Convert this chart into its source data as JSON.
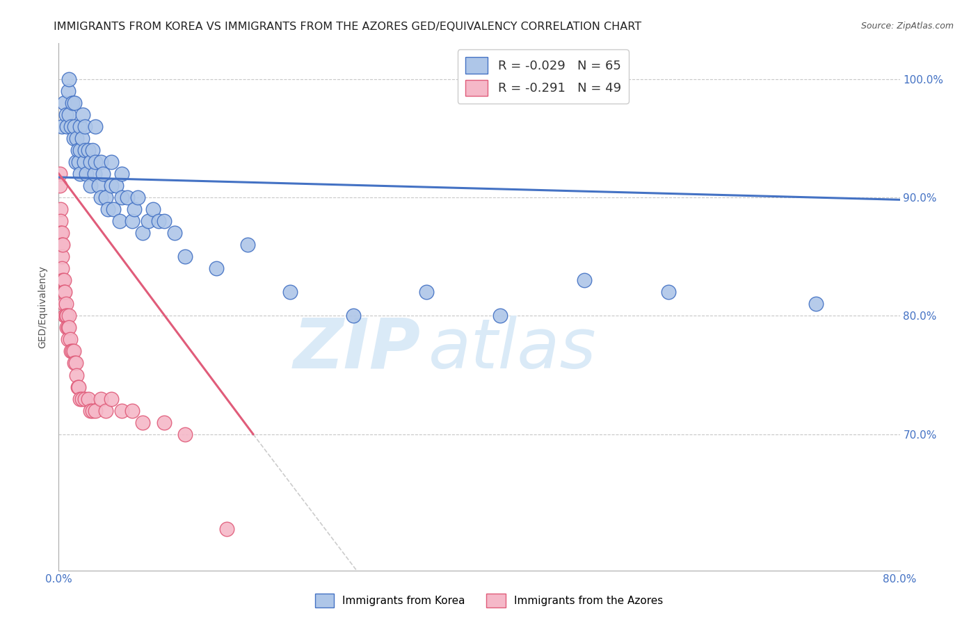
{
  "title": "IMMIGRANTS FROM KOREA VS IMMIGRANTS FROM THE AZORES GED/EQUIVALENCY CORRELATION CHART",
  "source": "Source: ZipAtlas.com",
  "ylabel": "GED/Equivalency",
  "ytick_labels": [
    "100.0%",
    "90.0%",
    "80.0%",
    "70.0%"
  ],
  "ytick_values": [
    1.0,
    0.9,
    0.8,
    0.7
  ],
  "xlim": [
    0.0,
    0.8
  ],
  "ylim": [
    0.585,
    1.03
  ],
  "korea_scatter_x": [
    0.003,
    0.005,
    0.007,
    0.008,
    0.009,
    0.01,
    0.01,
    0.012,
    0.013,
    0.014,
    0.015,
    0.015,
    0.016,
    0.017,
    0.018,
    0.019,
    0.02,
    0.02,
    0.02,
    0.022,
    0.023,
    0.024,
    0.025,
    0.025,
    0.026,
    0.028,
    0.03,
    0.03,
    0.032,
    0.034,
    0.035,
    0.035,
    0.038,
    0.04,
    0.04,
    0.042,
    0.045,
    0.047,
    0.05,
    0.05,
    0.052,
    0.055,
    0.058,
    0.06,
    0.06,
    0.065,
    0.07,
    0.072,
    0.075,
    0.08,
    0.085,
    0.09,
    0.095,
    0.1,
    0.11,
    0.12,
    0.15,
    0.18,
    0.22,
    0.28,
    0.35,
    0.42,
    0.5,
    0.58,
    0.72
  ],
  "korea_scatter_y": [
    0.96,
    0.98,
    0.97,
    0.96,
    0.99,
    0.97,
    1.0,
    0.96,
    0.98,
    0.95,
    0.96,
    0.98,
    0.93,
    0.95,
    0.94,
    0.93,
    0.96,
    0.94,
    0.92,
    0.95,
    0.97,
    0.93,
    0.96,
    0.94,
    0.92,
    0.94,
    0.93,
    0.91,
    0.94,
    0.92,
    0.96,
    0.93,
    0.91,
    0.93,
    0.9,
    0.92,
    0.9,
    0.89,
    0.91,
    0.93,
    0.89,
    0.91,
    0.88,
    0.9,
    0.92,
    0.9,
    0.88,
    0.89,
    0.9,
    0.87,
    0.88,
    0.89,
    0.88,
    0.88,
    0.87,
    0.85,
    0.84,
    0.86,
    0.82,
    0.8,
    0.82,
    0.8,
    0.83,
    0.82,
    0.81
  ],
  "azores_scatter_x": [
    0.001,
    0.001,
    0.002,
    0.002,
    0.002,
    0.003,
    0.003,
    0.003,
    0.003,
    0.004,
    0.004,
    0.005,
    0.005,
    0.005,
    0.006,
    0.006,
    0.007,
    0.007,
    0.008,
    0.008,
    0.009,
    0.009,
    0.01,
    0.01,
    0.011,
    0.012,
    0.013,
    0.014,
    0.015,
    0.016,
    0.017,
    0.018,
    0.019,
    0.02,
    0.022,
    0.025,
    0.028,
    0.03,
    0.032,
    0.035,
    0.04,
    0.045,
    0.05,
    0.06,
    0.07,
    0.08,
    0.1,
    0.12,
    0.16
  ],
  "azores_scatter_y": [
    0.92,
    0.91,
    0.89,
    0.88,
    0.87,
    0.87,
    0.86,
    0.85,
    0.84,
    0.86,
    0.83,
    0.83,
    0.82,
    0.81,
    0.82,
    0.8,
    0.81,
    0.8,
    0.8,
    0.79,
    0.79,
    0.78,
    0.8,
    0.79,
    0.78,
    0.77,
    0.77,
    0.77,
    0.76,
    0.76,
    0.75,
    0.74,
    0.74,
    0.73,
    0.73,
    0.73,
    0.73,
    0.72,
    0.72,
    0.72,
    0.73,
    0.72,
    0.73,
    0.72,
    0.72,
    0.71,
    0.71,
    0.7,
    0.62
  ],
  "korea_line_x": [
    0.0,
    0.8
  ],
  "korea_line_y": [
    0.917,
    0.898
  ],
  "azores_line_x": [
    0.0,
    0.185
  ],
  "azores_line_y": [
    0.92,
    0.7
  ],
  "gray_line_x": [
    0.185,
    0.48
  ],
  "gray_line_y": [
    0.7,
    0.355
  ],
  "korea_color": "#4472c4",
  "korea_scatter_color": "#aec6e8",
  "azores_color": "#e05c7a",
  "azores_scatter_color": "#f5b8c8",
  "grid_color": "#c8c8c8",
  "watermark_color": "#daeaf7",
  "background_color": "#ffffff",
  "title_fontsize": 11.5,
  "axis_label_fontsize": 10,
  "tick_fontsize": 11,
  "legend_fontsize": 13
}
